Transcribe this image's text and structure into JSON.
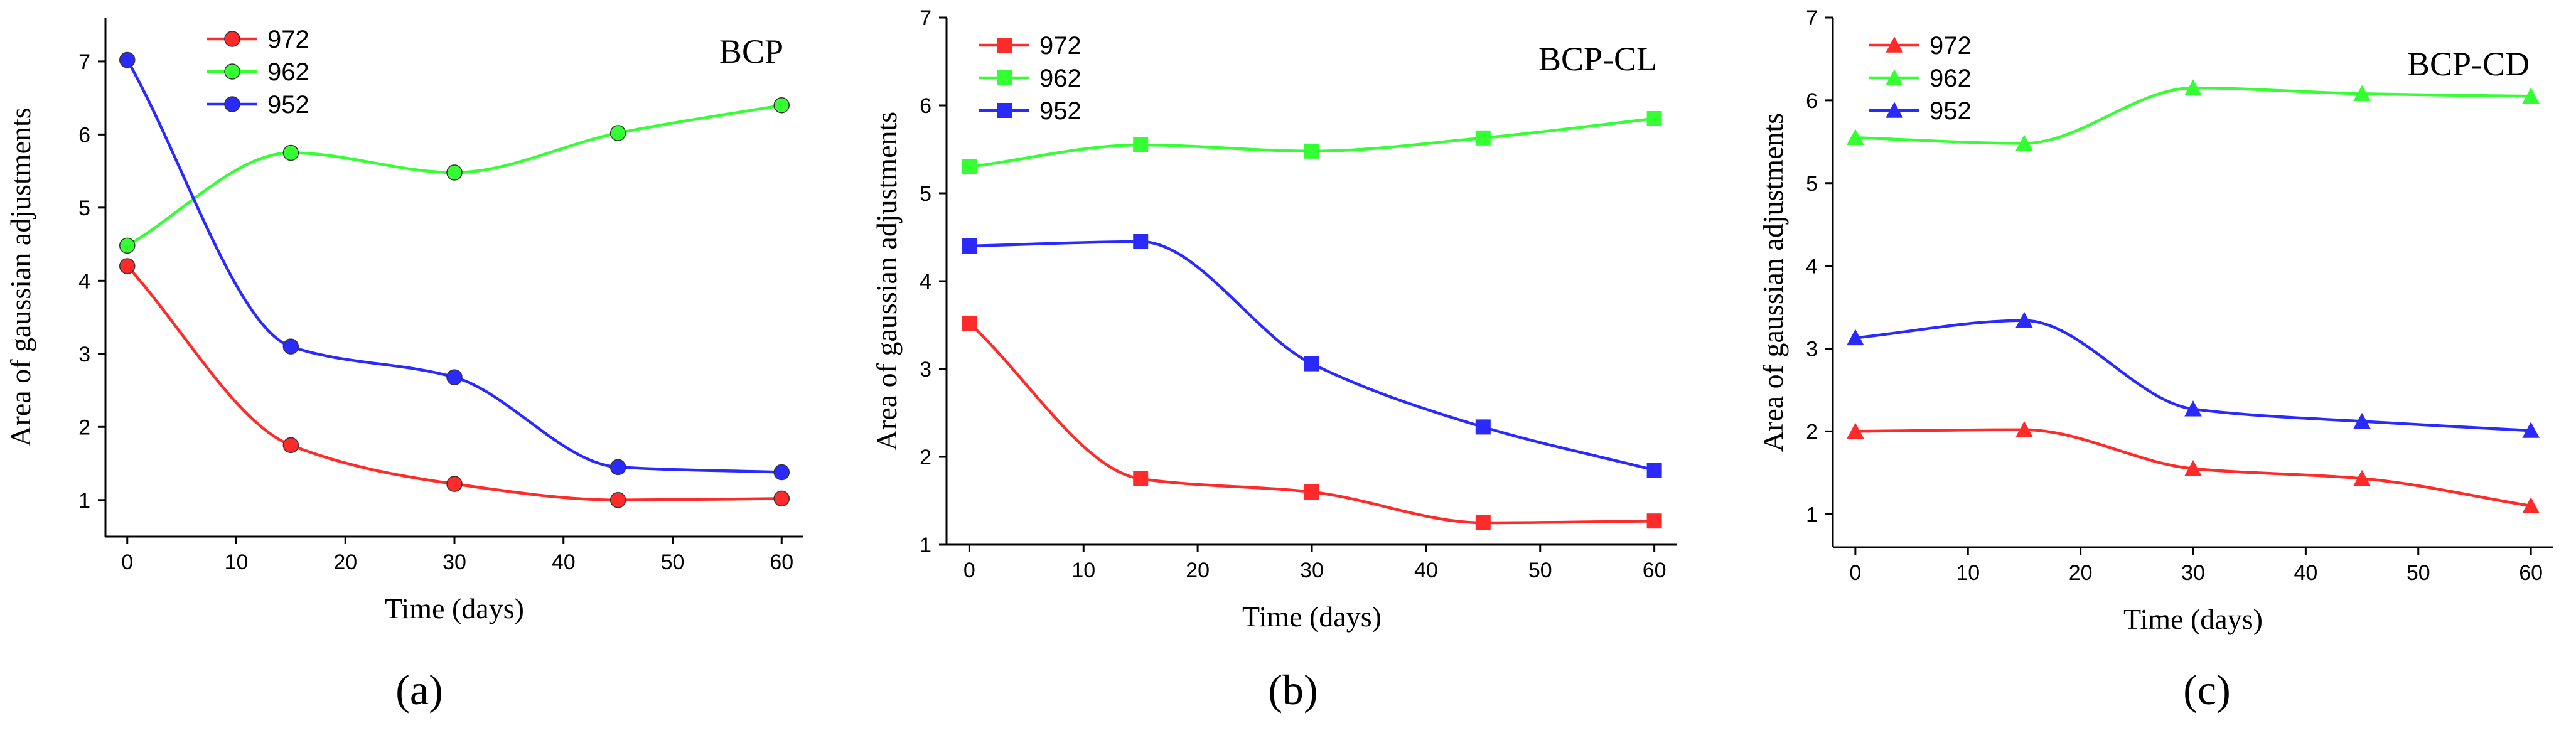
{
  "chart_data": [
    {
      "type": "line",
      "caption": "(a)",
      "title": "BCP",
      "xlabel": "Time (days)",
      "ylabel": "Area of gaussian adjustments",
      "xlim": [
        -2,
        62
      ],
      "ylim": [
        0.5,
        7.6
      ],
      "xticks": [
        0,
        10,
        20,
        30,
        40,
        50,
        60
      ],
      "yticks": [
        1,
        2,
        3,
        4,
        5,
        6,
        7
      ],
      "marker": "circle",
      "x": [
        0,
        15,
        30,
        45,
        60
      ],
      "series": [
        {
          "name": "972",
          "color": "#ff2a2a",
          "values": [
            4.2,
            1.75,
            1.22,
            1.0,
            1.02
          ]
        },
        {
          "name": "962",
          "color": "#33ff33",
          "values": [
            4.48,
            5.75,
            5.48,
            6.02,
            6.4
          ]
        },
        {
          "name": "952",
          "color": "#2a2aff",
          "values": [
            7.02,
            3.1,
            2.68,
            1.45,
            1.38
          ]
        }
      ]
    },
    {
      "type": "line",
      "caption": "(b)",
      "title": "BCP-CL",
      "xlabel": "Time (days)",
      "ylabel": "Area of gaussian adjustments",
      "xlim": [
        -2,
        62
      ],
      "ylim": [
        1,
        7
      ],
      "xticks": [
        0,
        10,
        20,
        30,
        40,
        50,
        60
      ],
      "yticks": [
        1,
        2,
        3,
        4,
        5,
        6,
        7
      ],
      "marker": "square",
      "x": [
        0,
        15,
        30,
        45,
        60
      ],
      "series": [
        {
          "name": "972",
          "color": "#ff2a2a",
          "values": [
            3.52,
            1.75,
            1.6,
            1.25,
            1.27
          ]
        },
        {
          "name": "962",
          "color": "#33ff33",
          "values": [
            5.3,
            5.55,
            5.48,
            5.63,
            5.85
          ]
        },
        {
          "name": "952",
          "color": "#2a2aff",
          "values": [
            4.4,
            4.45,
            3.06,
            2.34,
            1.85
          ]
        }
      ]
    },
    {
      "type": "line",
      "caption": "(c)",
      "title": "BCP-CD",
      "xlabel": "Time (days)",
      "ylabel": "Area of gaussian adjustments",
      "xlim": [
        -2,
        62
      ],
      "ylim": [
        0.6,
        7
      ],
      "xticks": [
        0,
        10,
        20,
        30,
        40,
        50,
        60
      ],
      "yticks": [
        1,
        2,
        3,
        4,
        5,
        6,
        7
      ],
      "marker": "triangle",
      "x": [
        0,
        15,
        30,
        45,
        60
      ],
      "series": [
        {
          "name": "972",
          "color": "#ff2a2a",
          "values": [
            2.0,
            2.02,
            1.55,
            1.43,
            1.1
          ]
        },
        {
          "name": "962",
          "color": "#33ff33",
          "values": [
            5.55,
            5.48,
            6.15,
            6.08,
            6.05
          ]
        },
        {
          "name": "952",
          "color": "#2a2aff",
          "values": [
            3.13,
            3.34,
            2.27,
            2.12,
            2.01
          ]
        }
      ]
    }
  ]
}
